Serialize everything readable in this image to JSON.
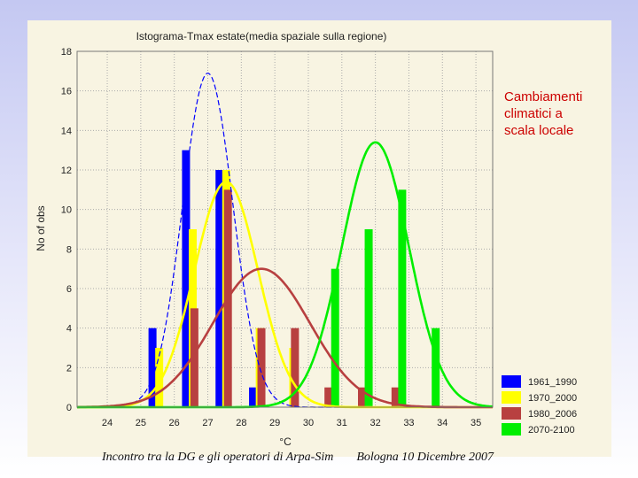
{
  "side_note": "Cambiamenti\nclimatici a\nscala locale",
  "footer": {
    "left": "Incontro tra la DG e gli operatori di Arpa-Sim",
    "right": "Bologna 10 Dicembre 2007"
  },
  "chart_data": {
    "type": "bar",
    "title": "Istograma-Tmax estate(media spaziale sulla regione)",
    "xlabel": "°C",
    "ylabel": "No of obs",
    "xlim": [
      23.1,
      35.5
    ],
    "ylim": [
      0,
      18
    ],
    "xticks": [
      24,
      25,
      26,
      27,
      28,
      29,
      30,
      31,
      32,
      33,
      34,
      35
    ],
    "yticks": [
      0,
      2,
      4,
      6,
      8,
      10,
      12,
      14,
      16,
      18
    ],
    "grid": true,
    "legend_position": "bottom-right",
    "series": [
      {
        "name": "1961_1990",
        "color": "#0000ff",
        "bars": [
          {
            "x": 25.35,
            "y": 4
          },
          {
            "x": 26.35,
            "y": 13
          },
          {
            "x": 27.35,
            "y": 12
          },
          {
            "x": 28.35,
            "y": 1
          }
        ],
        "curve": {
          "mean": 27.0,
          "sd": 0.75,
          "peak": 16.9,
          "style": "dashed"
        }
      },
      {
        "name": "1970_2000",
        "color": "#ffff00",
        "bars": [
          {
            "x": 25.55,
            "y": 3
          },
          {
            "x": 26.55,
            "y": 9
          },
          {
            "x": 27.55,
            "y": 12
          },
          {
            "x": 28.55,
            "y": 4
          },
          {
            "x": 29.55,
            "y": 3
          }
        ],
        "curve": {
          "mean": 27.55,
          "sd": 0.95,
          "peak": 11.4,
          "style": "solid"
        }
      },
      {
        "name": "1980_2006",
        "color": "#b84040",
        "bars": [
          {
            "x": 26.6,
            "y": 5
          },
          {
            "x": 27.6,
            "y": 11
          },
          {
            "x": 28.6,
            "y": 4
          },
          {
            "x": 29.6,
            "y": 4
          },
          {
            "x": 30.6,
            "y": 1
          },
          {
            "x": 31.6,
            "y": 1
          },
          {
            "x": 32.6,
            "y": 1
          }
        ],
        "curve": {
          "mean": 28.6,
          "sd": 1.45,
          "peak": 7.0,
          "style": "solid"
        }
      },
      {
        "name": "2070-2100",
        "color": "#00ee00",
        "bars": [
          {
            "x": 30.8,
            "y": 7
          },
          {
            "x": 31.8,
            "y": 9
          },
          {
            "x": 32.8,
            "y": 11
          },
          {
            "x": 33.8,
            "y": 4
          }
        ],
        "curve": {
          "mean": 32.0,
          "sd": 1.0,
          "peak": 13.4,
          "style": "solid"
        }
      }
    ]
  }
}
